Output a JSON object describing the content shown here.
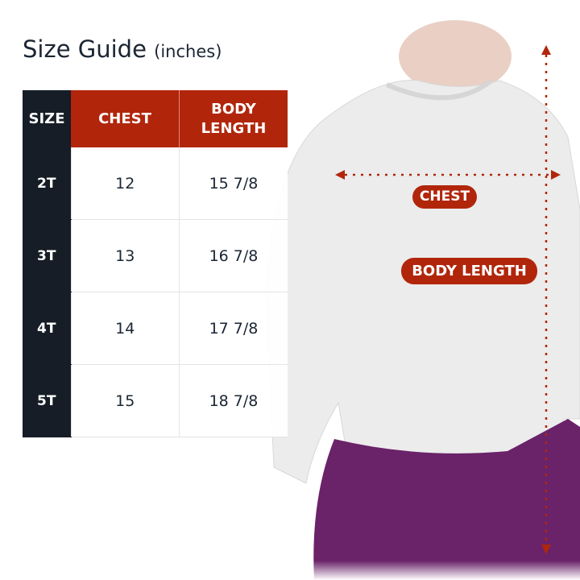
{
  "title": "Size Guide",
  "unit": "(inches)",
  "colors": {
    "accent": "#b1260b",
    "dark": "#161d26",
    "text": "#1b2533",
    "pants": "#6a2269"
  },
  "table": {
    "headers": [
      "SIZE",
      "CHEST",
      "BODY LENGTH"
    ],
    "rows": [
      {
        "size": "2T",
        "chest": "12",
        "body_length": "15 7/8"
      },
      {
        "size": "3T",
        "chest": "13",
        "body_length": "16 7/8"
      },
      {
        "size": "4T",
        "chest": "14",
        "body_length": "17 7/8"
      },
      {
        "size": "5T",
        "chest": "15",
        "body_length": "18 7/8"
      }
    ]
  },
  "labels": {
    "chest": "CHEST",
    "body_length": "BODY LENGTH"
  },
  "icons": {
    "measure_arrow": "dotted-double-arrow"
  }
}
